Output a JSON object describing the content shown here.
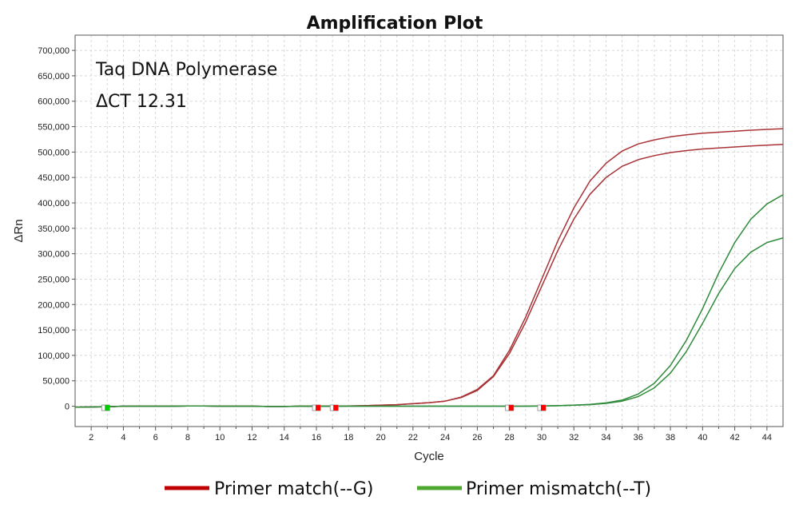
{
  "chart_data": {
    "type": "line",
    "title": "Amplification Plot",
    "xlabel": "Cycle",
    "ylabel": "ΔRn",
    "xlim": [
      1,
      45
    ],
    "ylim": [
      -40000,
      730000
    ],
    "x_ticks": [
      2,
      4,
      6,
      8,
      10,
      12,
      14,
      16,
      18,
      20,
      22,
      24,
      26,
      28,
      30,
      32,
      34,
      36,
      38,
      40,
      42,
      44
    ],
    "y_ticks": [
      0,
      50000,
      100000,
      150000,
      200000,
      250000,
      300000,
      350000,
      400000,
      450000,
      500000,
      550000,
      600000,
      650000,
      700000
    ],
    "y_tick_labels": [
      "0",
      "50,000",
      "100,000",
      "150,000",
      "200,000",
      "250,000",
      "300,000",
      "350,000",
      "400,000",
      "450,000",
      "500,000",
      "550,000",
      "600,000",
      "650,000",
      "700,000"
    ],
    "grid": true,
    "annotations": [
      "Taq DNA Polymerase",
      "ΔCT 12.31"
    ],
    "legend_position": "bottom",
    "legend": [
      {
        "label": "Primer match(--G)",
        "color": "#c00000"
      },
      {
        "label": "Primer mismatch(--T)",
        "color": "#4ea72e"
      }
    ],
    "x": [
      1,
      2,
      3,
      4,
      5,
      6,
      7,
      8,
      9,
      10,
      11,
      12,
      13,
      14,
      15,
      16,
      17,
      18,
      19,
      20,
      21,
      22,
      23,
      24,
      25,
      26,
      27,
      28,
      29,
      30,
      31,
      32,
      33,
      34,
      35,
      36,
      37,
      38,
      39,
      40,
      41,
      42,
      43,
      44,
      45
    ],
    "series": [
      {
        "color": "#a83236",
        "values": [
          -2000,
          -1500,
          -1000,
          0,
          0,
          0,
          0,
          500,
          500,
          0,
          0,
          0,
          -500,
          -500,
          0,
          0,
          0,
          500,
          1000,
          2000,
          3000,
          5000,
          7000,
          10000,
          18000,
          33000,
          60000,
          110000,
          175000,
          250000,
          325000,
          390000,
          443000,
          478000,
          502000,
          516000,
          524000,
          530000,
          534000,
          537000,
          539000,
          541000,
          543000,
          544500,
          546000
        ]
      },
      {
        "color": "#a83236",
        "values": [
          -2000,
          -1500,
          -1000,
          0,
          0,
          0,
          0,
          500,
          500,
          0,
          0,
          0,
          -500,
          -500,
          0,
          0,
          0,
          500,
          1000,
          2000,
          3000,
          5000,
          7000,
          10000,
          17000,
          31000,
          58000,
          104000,
          165000,
          236000,
          306000,
          368000,
          417000,
          450000,
          472000,
          485000,
          493000,
          499000,
          503000,
          506000,
          508000,
          510000,
          512000,
          513500,
          515000
        ]
      },
      {
        "color": "#2e8b3a",
        "values": [
          -2000,
          -1500,
          -1000,
          0,
          0,
          0,
          0,
          500,
          500,
          0,
          0,
          0,
          -500,
          -500,
          0,
          0,
          0,
          0,
          0,
          0,
          0,
          0,
          0,
          0,
          0,
          0,
          0,
          0,
          0,
          500,
          1000,
          2000,
          3500,
          6500,
          12000,
          24000,
          45000,
          80000,
          130000,
          192000,
          262000,
          322000,
          368000,
          398000,
          416000
        ]
      },
      {
        "color": "#2e8b3a",
        "values": [
          -2000,
          -1500,
          -1000,
          0,
          0,
          0,
          0,
          500,
          500,
          0,
          0,
          0,
          -500,
          -500,
          0,
          0,
          0,
          0,
          0,
          0,
          0,
          0,
          0,
          0,
          0,
          0,
          0,
          0,
          0,
          500,
          1000,
          2000,
          3000,
          5500,
          10000,
          19000,
          36000,
          65000,
          108000,
          163000,
          222000,
          271000,
          303000,
          322000,
          331000
        ]
      }
    ],
    "threshold_markers": [
      {
        "x": 2.9,
        "color": "#00cc00"
      },
      {
        "x": 16,
        "color": "#ff0000"
      },
      {
        "x": 17.1,
        "color": "#ff0000"
      },
      {
        "x": 28,
        "color": "#ff0000"
      },
      {
        "x": 30,
        "color": "#ff0000"
      }
    ]
  }
}
